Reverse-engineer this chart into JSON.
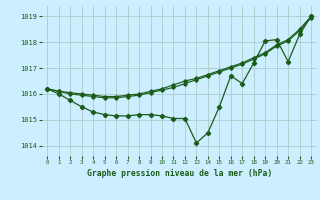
{
  "title": "Graphe pression niveau de la mer (hPa)",
  "bg_color": "#cceeff",
  "grid_color": "#aacccc",
  "line_color": "#1a5c1a",
  "x_ticks": [
    0,
    1,
    2,
    3,
    4,
    5,
    6,
    7,
    8,
    9,
    10,
    11,
    12,
    13,
    14,
    15,
    16,
    17,
    18,
    19,
    20,
    21,
    22,
    23
  ],
  "y_ticks": [
    1014,
    1015,
    1016,
    1017,
    1018,
    1019
  ],
  "ylim": [
    1013.6,
    1019.4
  ],
  "xlim": [
    -0.5,
    23.5
  ],
  "line1": [
    1016.2,
    1016.0,
    1015.75,
    1015.5,
    1015.3,
    1015.2,
    1015.15,
    1015.15,
    1015.2,
    1015.2,
    1015.15,
    1015.05,
    1015.05,
    1014.1,
    1014.5,
    1015.5,
    1016.7,
    1016.4,
    1017.2,
    1018.05,
    1018.1,
    1017.25,
    1018.3,
    1019.0
  ],
  "line2": [
    1016.2,
    1016.1,
    1016.05,
    1016.0,
    1015.95,
    1015.9,
    1015.9,
    1015.95,
    1016.0,
    1016.1,
    1016.2,
    1016.35,
    1016.5,
    1016.6,
    1016.75,
    1016.9,
    1017.05,
    1017.2,
    1017.4,
    1017.6,
    1017.9,
    1018.1,
    1018.5,
    1019.0
  ],
  "line3": [
    1016.2,
    1016.1,
    1016.0,
    1015.95,
    1015.9,
    1015.85,
    1015.85,
    1015.9,
    1015.95,
    1016.05,
    1016.15,
    1016.25,
    1016.4,
    1016.55,
    1016.7,
    1016.85,
    1017.0,
    1017.15,
    1017.35,
    1017.55,
    1017.85,
    1018.05,
    1018.45,
    1018.95
  ]
}
